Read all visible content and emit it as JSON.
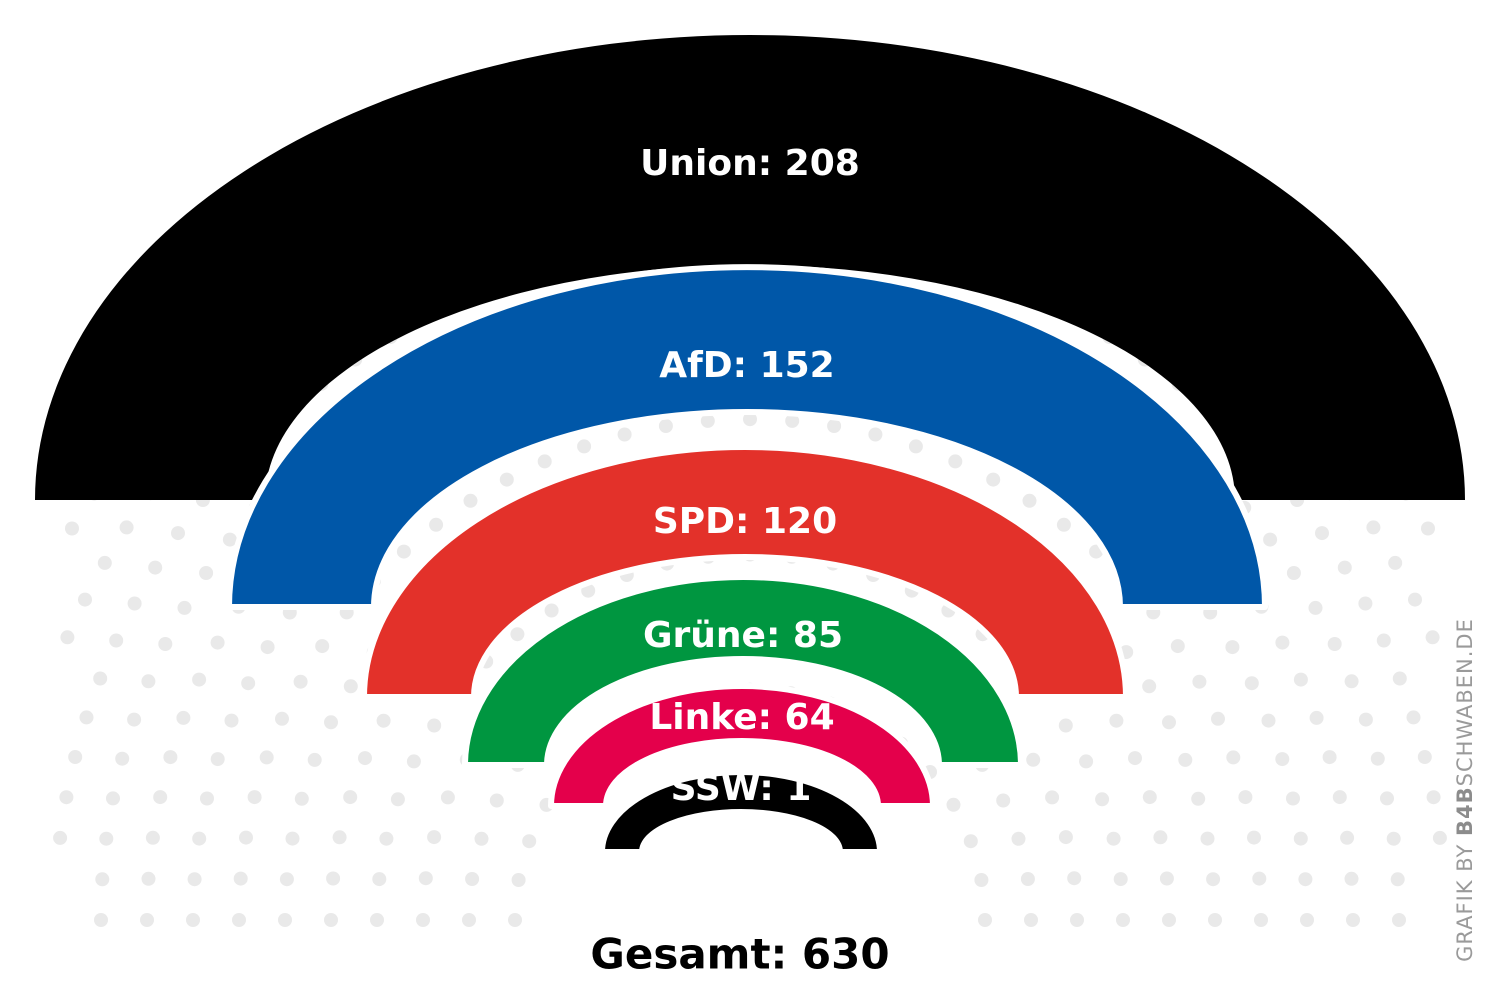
{
  "chart_data": {
    "type": "semicircle-arcs",
    "series": [
      {
        "name": "Union",
        "label": "Union: 208",
        "value": 208,
        "color": "#000000"
      },
      {
        "name": "AfD",
        "label": "AfD: 152",
        "value": 152,
        "color": "#0057a8"
      },
      {
        "name": "SPD",
        "label": "SPD: 120",
        "value": 120,
        "color": "#e3312a"
      },
      {
        "name": "Grüne",
        "label": "Grüne: 85",
        "value": 85,
        "color": "#009640"
      },
      {
        "name": "Linke",
        "label": "Linke: 64",
        "value": 64,
        "color": "#e4004b"
      },
      {
        "name": "SSW",
        "label": "SSW: 1",
        "value": 1,
        "color": "#000000"
      }
    ],
    "total_label": "Gesamt: 630",
    "total": 630
  },
  "credit": {
    "prefix": "GRAFIK BY ",
    "brand": "B4B",
    "suffix": "SCHWABEN.DE"
  },
  "colors": {
    "background": "#ffffff",
    "dots": "#e9e9e9",
    "credit": "#9a9a9a"
  }
}
